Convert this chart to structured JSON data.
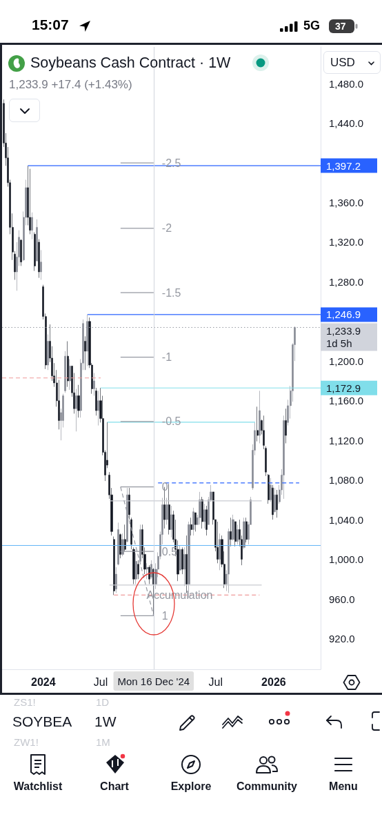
{
  "chart_data": {
    "type": "candlestick",
    "title": "Soybeans Cash Contract · 1W",
    "subtitle": "1,233.9 +17.4 (+1.43%)",
    "x": [
      "2023-08-28",
      "2023-09-04",
      "2023-09-11",
      "2023-09-18",
      "2023-09-25",
      "2023-10-02",
      "2023-10-09",
      "2023-10-16",
      "2023-10-23",
      "2023-10-30",
      "2023-11-06",
      "2023-11-13",
      "2023-11-20",
      "2023-11-27",
      "2023-12-04",
      "2023-12-11",
      "2023-12-18",
      "2023-12-25",
      "2024-01-01",
      "2024-01-08",
      "2024-01-15",
      "2024-01-22",
      "2024-01-29",
      "2024-02-05",
      "2024-02-12",
      "2024-02-19",
      "2024-02-26",
      "2024-03-04",
      "2024-03-11",
      "2024-03-18",
      "2024-03-25",
      "2024-04-01",
      "2024-04-08",
      "2024-04-15",
      "2024-04-22",
      "2024-04-29",
      "2024-05-06",
      "2024-05-13",
      "2024-05-20",
      "2024-05-27",
      "2024-06-03",
      "2024-06-10",
      "2024-06-17",
      "2024-06-24",
      "2024-07-01",
      "2024-07-08",
      "2024-07-15",
      "2024-07-22",
      "2024-07-29",
      "2024-08-05",
      "2024-08-12",
      "2024-08-19",
      "2024-08-26",
      "2024-09-02",
      "2024-09-09",
      "2024-09-16",
      "2024-09-23",
      "2024-09-30",
      "2024-10-07",
      "2024-10-14",
      "2024-10-21",
      "2024-10-28",
      "2024-11-04",
      "2024-11-11",
      "2024-11-18",
      "2024-11-25",
      "2024-12-02",
      "2024-12-09",
      "2024-12-16",
      "2024-12-23",
      "2024-12-30",
      "2025-01-06",
      "2025-01-13",
      "2025-01-20",
      "2025-01-27",
      "2025-02-03",
      "2025-02-10",
      "2025-02-17",
      "2025-02-24",
      "2025-03-03",
      "2025-03-10",
      "2025-03-17",
      "2025-03-24",
      "2025-03-31",
      "2025-04-07",
      "2025-04-14",
      "2025-04-21",
      "2025-04-28",
      "2025-05-05",
      "2025-05-12",
      "2025-05-19",
      "2025-05-26",
      "2025-06-02",
      "2025-06-09",
      "2025-06-16",
      "2025-06-23",
      "2025-06-30",
      "2025-07-07",
      "2025-07-14",
      "2025-07-21",
      "2025-07-28",
      "2025-08-04",
      "2025-08-11",
      "2025-08-18",
      "2025-08-25",
      "2025-09-01",
      "2025-09-08",
      "2025-09-15",
      "2025-09-22",
      "2025-09-29",
      "2025-10-06",
      "2025-10-13",
      "2025-10-20",
      "2025-10-27",
      "2025-11-03",
      "2025-11-10",
      "2025-11-17",
      "2025-11-24",
      "2025-12-01",
      "2025-12-08",
      "2025-12-15",
      "2025-12-22",
      "2025-12-29",
      "2026-01-05",
      "2026-01-12",
      "2026-01-19",
      "2026-01-26",
      "2026-02-02",
      "2026-02-09",
      "2026-02-16",
      "2026-02-23",
      "2026-03-02",
      "2026-03-09"
    ],
    "ohlc": [
      [
        1460,
        1464,
        1416,
        1420
      ],
      [
        1420,
        1430,
        1397,
        1405
      ],
      [
        1405,
        1416,
        1376,
        1380
      ],
      [
        1380,
        1383,
        1328,
        1335
      ],
      [
        1335,
        1349,
        1302,
        1310
      ],
      [
        1308,
        1311,
        1282,
        1290
      ],
      [
        1290,
        1320,
        1271,
        1305
      ],
      [
        1305,
        1332,
        1296,
        1325
      ],
      [
        1322,
        1323,
        1296,
        1300
      ],
      [
        1302,
        1351,
        1301,
        1345
      ],
      [
        1345,
        1383,
        1337,
        1375
      ],
      [
        1375,
        1397.2,
        1337,
        1345
      ],
      [
        1345,
        1394,
        1328,
        1332
      ],
      [
        1332,
        1350,
        1323,
        1345
      ],
      [
        1328,
        1330,
        1291,
        1296
      ],
      [
        1301,
        1343,
        1301,
        1335
      ],
      [
        1320,
        1323,
        1284,
        1290
      ],
      [
        1290,
        1312,
        1282,
        1300
      ],
      [
        1275,
        1277,
        1242,
        1245
      ],
      [
        1245,
        1248,
        1192,
        1196
      ],
      [
        1196,
        1227,
        1191,
        1220
      ],
      [
        1220,
        1237,
        1199,
        1203
      ],
      [
        1203,
        1215,
        1180,
        1185
      ],
      [
        1185,
        1198,
        1174,
        1178
      ],
      [
        1178,
        1191,
        1154,
        1160
      ],
      [
        1160,
        1181,
        1131,
        1140
      ],
      [
        1140,
        1152,
        1120,
        1148
      ],
      [
        1140,
        1167,
        1133,
        1165
      ],
      [
        1170,
        1210,
        1168,
        1205
      ],
      [
        1205,
        1220,
        1174,
        1180
      ],
      [
        1180,
        1202,
        1171,
        1195
      ],
      [
        1195,
        1195,
        1164,
        1168
      ],
      [
        1168,
        1188,
        1147,
        1152
      ],
      [
        1152,
        1172,
        1129,
        1165
      ],
      [
        1165,
        1176,
        1143,
        1150
      ],
      [
        1150,
        1202,
        1143,
        1198
      ],
      [
        1198,
        1242,
        1191,
        1238
      ],
      [
        1220,
        1225,
        1191,
        1210
      ],
      [
        1210,
        1246.9,
        1195,
        1240
      ],
      [
        1240,
        1244,
        1193,
        1196
      ],
      [
        1196,
        1198,
        1167,
        1172
      ],
      [
        1172,
        1188,
        1165,
        1180
      ],
      [
        1170,
        1173,
        1145,
        1150
      ],
      [
        1150,
        1170,
        1135,
        1160
      ],
      [
        1160,
        1172.9,
        1138,
        1142
      ],
      [
        1142,
        1165,
        1105,
        1108
      ],
      [
        1108,
        1110,
        1079,
        1085
      ],
      [
        1100,
        1138.4,
        1092,
        1095
      ],
      [
        1085,
        1088,
        1061,
        1065
      ],
      [
        1065,
        1072,
        1024,
        1028
      ],
      [
        1020,
        1023,
        964,
        968
      ],
      [
        970,
        992,
        966,
        985
      ],
      [
        995,
        1037,
        994,
        1030
      ],
      [
        1025,
        1026,
        1001,
        1005
      ],
      [
        1005,
        1026,
        1003,
        1020
      ],
      [
        1020,
        1035,
        1008,
        1010
      ],
      [
        1018,
        1072,
        1017,
        1065
      ],
      [
        1065,
        1072,
        1040,
        1045
      ],
      [
        1040,
        1042,
        1010,
        1015
      ],
      [
        1010,
        1012,
        975,
        980
      ],
      [
        980,
        1006,
        975,
        998
      ],
      [
        995,
        999,
        980,
        985
      ],
      [
        998,
        1035,
        996,
        1030
      ],
      [
        1030,
        1035,
        1001,
        1005
      ],
      [
        1005,
        1012,
        985,
        990
      ],
      [
        990,
        996,
        980,
        992
      ],
      [
        992,
        994,
        975,
        980
      ],
      [
        982,
        999,
        980,
        995
      ],
      [
        990,
        991,
        943,
        975
      ],
      [
        975,
        996,
        970,
        990
      ],
      [
        990,
        1007,
        982,
        1003
      ],
      [
        1003,
        1028,
        1000,
        1025
      ],
      [
        1025,
        1062,
        1015,
        1055
      ],
      [
        1055,
        1073,
        1031,
        1040
      ],
      [
        1040,
        1062,
        1035,
        1055
      ],
      [
        1055,
        1076,
        1025,
        1030
      ],
      [
        1030,
        1054,
        1022,
        1045
      ],
      [
        1045,
        1049,
        1017,
        1020
      ],
      [
        1020,
        1040,
        1003,
        1010
      ],
      [
        1010,
        1019,
        978,
        985
      ],
      [
        989,
        1014,
        989,
        1010
      ],
      [
        1010,
        1012,
        985,
        990
      ],
      [
        990,
        1012,
        973,
        1005
      ],
      [
        1005,
        1024,
        966,
        975
      ],
      [
        975,
        1038,
        961,
        1035
      ],
      [
        1035,
        1042,
        1024,
        1030
      ],
      [
        1030,
        1052,
        1024,
        1048
      ],
      [
        1047,
        1047,
        1028,
        1035
      ],
      [
        1035,
        1045,
        1035,
        1042
      ],
      [
        1042,
        1068,
        1035,
        1060
      ],
      [
        1060,
        1063,
        1031,
        1038
      ],
      [
        1038,
        1056,
        1031,
        1050
      ],
      [
        1050,
        1054,
        1024,
        1030
      ],
      [
        1035,
        1063,
        1035,
        1060
      ],
      [
        1060,
        1075,
        1058,
        1068
      ],
      [
        1068,
        1068,
        1035,
        1040
      ],
      [
        1040,
        1040,
        1008,
        1012
      ],
      [
        1012,
        1038,
        996,
        1000
      ],
      [
        1000,
        1026,
        989,
        1020
      ],
      [
        1020,
        1024,
        992,
        995
      ],
      [
        995,
        1008,
        971,
        975
      ],
      [
        975,
        989,
        968,
        985
      ],
      [
        985,
        1031,
        966,
        1028
      ],
      [
        1028,
        1042,
        1013,
        1020
      ],
      [
        1020,
        1045,
        1019,
        1040
      ],
      [
        1038,
        1038,
        1013,
        1018
      ],
      [
        1018,
        1035,
        1015,
        1030
      ],
      [
        1030,
        1040,
        1013,
        1020
      ],
      [
        1020,
        1024,
        994,
        1000
      ],
      [
        1012,
        1042,
        1010,
        1038
      ],
      [
        1038,
        1042,
        1017,
        1020
      ],
      [
        1020,
        1038,
        1015,
        1035
      ],
      [
        1035,
        1063,
        1035,
        1060
      ],
      [
        1072,
        1116,
        1070,
        1110
      ],
      [
        1110,
        1138,
        1105,
        1130
      ],
      [
        1130,
        1154,
        1119,
        1125
      ],
      [
        1125,
        1170,
        1117,
        1150
      ],
      [
        1140,
        1141,
        1126,
        1130
      ],
      [
        1130,
        1145,
        1111,
        1115
      ],
      [
        1112,
        1114,
        1084,
        1088
      ],
      [
        1085,
        1086,
        1056,
        1060
      ],
      [
        1060,
        1082,
        1058,
        1075
      ],
      [
        1072,
        1075,
        1040,
        1045
      ],
      [
        1048,
        1072,
        1047,
        1065
      ],
      [
        1065,
        1070,
        1042,
        1050
      ],
      [
        1058,
        1075,
        1056,
        1070
      ],
      [
        1070,
        1091,
        1065,
        1085
      ],
      [
        1085,
        1145,
        1061,
        1140
      ],
      [
        1140,
        1152,
        1117,
        1125
      ],
      [
        1138,
        1161,
        1135,
        1155
      ],
      [
        1155,
        1175,
        1142,
        1170
      ],
      [
        1170,
        1218,
        1159,
        1216.5
      ],
      [
        1216.5,
        1235,
        1200,
        1233.9
      ]
    ],
    "colors": [
      "#131722",
      "#131722",
      "#131722",
      "#131722",
      "#131722",
      "#131722",
      "#868993",
      "#868993",
      "#131722",
      "#868993",
      "#868993",
      "#131722",
      "#131722",
      "#868993",
      "#131722",
      "#868993",
      "#131722",
      "#868993",
      "#131722",
      "#131722",
      "#868993",
      "#131722",
      "#131722",
      "#131722",
      "#131722",
      "#131722",
      "#868993",
      "#868993",
      "#868993",
      "#131722",
      "#868993",
      "#131722",
      "#131722",
      "#868993",
      "#131722",
      "#868993",
      "#868993",
      "#131722",
      "#868993",
      "#131722",
      "#131722",
      "#868993",
      "#131722",
      "#868993",
      "#131722",
      "#131722",
      "#131722",
      "#131722",
      "#131722",
      "#131722",
      "#131722",
      "#868993",
      "#868993",
      "#131722",
      "#868993",
      "#131722",
      "#868993",
      "#131722",
      "#131722",
      "#131722",
      "#868993",
      "#131722",
      "#868993",
      "#131722",
      "#131722",
      "#868993",
      "#131722",
      "#868993",
      "#131722",
      "#868993",
      "#868993",
      "#868993",
      "#868993",
      "#131722",
      "#868993",
      "#131722",
      "#868993",
      "#131722",
      "#131722",
      "#131722",
      "#868993",
      "#131722",
      "#868993",
      "#131722",
      "#868993",
      "#131722",
      "#868993",
      "#131722",
      "#868993",
      "#868993",
      "#131722",
      "#868993",
      "#131722",
      "#868993",
      "#868993",
      "#131722",
      "#131722",
      "#131722",
      "#868993",
      "#131722",
      "#131722",
      "#868993",
      "#868993",
      "#131722",
      "#868993",
      "#131722",
      "#868993",
      "#131722",
      "#131722",
      "#868993",
      "#131722",
      "#868993",
      "#868993",
      "#868993",
      "#868993",
      "#131722",
      "#868993",
      "#131722",
      "#131722",
      "#131722",
      "#131722",
      "#868993",
      "#131722",
      "#868993",
      "#131722",
      "#868993",
      "#868993",
      "#868993",
      "#131722",
      "#868993",
      "#868993",
      "#868993",
      "#868993"
    ],
    "series": [
      {
        "type": "line",
        "x": [
          "2023-11-13",
          "2026-05-30"
        ],
        "values": [
          1397.2,
          1397.2
        ],
        "color": "#2962ff",
        "value_labels": [
          null,
          "1,397.2"
        ]
      },
      {
        "type": "line",
        "x": [
          "2024-05-20",
          "2026-05-30"
        ],
        "values": [
          1246.9,
          1246.9
        ],
        "color": "#2962ff",
        "value_labels": [
          null,
          "1,246.9"
        ]
      },
      {
        "type": "line",
        "x": [
          "2024-07-01",
          "2026-05-30"
        ],
        "values": [
          1172.9,
          1172.9
        ],
        "color": "#80deea",
        "value_labels": [
          null,
          "1,172.9"
        ]
      },
      {
        "type": "line",
        "x": [
          "2024-07-22",
          "2025-11-03"
        ],
        "values": [
          1138.4,
          1138.4
        ],
        "color": "#80deea"
      },
      {
        "type": "line",
        "x": [
          "2024-12-30",
          "2026-03-23"
        ],
        "values": [
          1077,
          1077
        ],
        "color": "#2962ff",
        "line_style": "dashed"
      },
      {
        "type": "line",
        "x": [
          "2023-08-23",
          "2024-07-01"
        ],
        "values": [
          1183,
          1183
        ],
        "color": "#ef9a9a",
        "line_style": "dashed"
      },
      {
        "type": "line",
        "x": [
          "2024-08-12",
          "2025-11-17"
        ],
        "values": [
          964,
          964
        ],
        "color": "#ef9a9a",
        "line_style": "dashed"
      },
      {
        "type": "line",
        "x": [
          "2024-07-29",
          "2025-11-24"
        ],
        "values": [
          1059,
          1059
        ],
        "color": "#c9cbd1"
      },
      {
        "type": "line",
        "x": [
          "2024-07-29",
          "2025-11-24"
        ],
        "values": [
          974,
          974
        ],
        "color": "#c9cbd1"
      },
      {
        "type": "line",
        "x": [
          "2024-09-02",
          "2024-12-16"
        ],
        "values": [
          1073,
          943
        ],
        "color": "#9598a1",
        "line_style": "dashed"
      },
      {
        "type": "line",
        "x": [
          "2024-09-02",
          "2024-12-16"
        ],
        "values": [
          943,
          943
        ],
        "color": "#9598a1"
      },
      {
        "type": "line",
        "x": [
          "2024-09-02",
          "2024-12-16"
        ],
        "values": [
          1008,
          1008
        ],
        "color": "#9598a1"
      },
      {
        "type": "line",
        "x": [
          "2024-09-02",
          "2024-12-16"
        ],
        "values": [
          1073,
          1073
        ],
        "color": "#9598a1"
      },
      {
        "type": "line",
        "x": [
          "2024-09-02",
          "2024-12-16"
        ],
        "values": [
          1139,
          1139
        ],
        "color": "#9598a1"
      },
      {
        "type": "line",
        "x": [
          "2024-09-02",
          "2024-12-16"
        ],
        "values": [
          1204,
          1204
        ],
        "color": "#9598a1"
      },
      {
        "type": "line",
        "x": [
          "2024-09-02",
          "2024-12-16"
        ],
        "values": [
          1269,
          1269
        ],
        "color": "#9598a1"
      },
      {
        "type": "line",
        "x": [
          "2024-09-02",
          "2024-12-16"
        ],
        "values": [
          1334,
          1334
        ],
        "color": "#9598a1"
      },
      {
        "type": "line",
        "x": [
          "2024-09-02",
          "2024-12-16"
        ],
        "values": [
          1400,
          1400
        ],
        "color": "#9598a1"
      }
    ],
    "xlim": [
      "2023-08-23",
      "2026-05-30"
    ],
    "xticks": [
      {
        "value": "2024-01-01",
        "label": "2024"
      },
      {
        "value": "2024-07-01",
        "label": "Jul"
      },
      {
        "value": "2025-07-01",
        "label": "Jul"
      },
      {
        "value": "2026-01-01",
        "label": "2026"
      }
    ],
    "ylim": [
      889,
      1517
    ],
    "yticks": [
      {
        "value": 920,
        "label": "920.0"
      },
      {
        "value": 960,
        "label": "960.0"
      },
      {
        "value": 1000,
        "label": "1,000.0"
      },
      {
        "value": 1040,
        "label": "1,040.0"
      },
      {
        "value": 1080,
        "label": "1,080.0"
      },
      {
        "value": 1120,
        "label": "1,120.0"
      },
      {
        "value": 1160,
        "label": "1,160.0"
      },
      {
        "value": 1200,
        "label": "1,200.0"
      },
      {
        "value": 1280,
        "label": "1,280.0"
      },
      {
        "value": 1320,
        "label": "1,320.0"
      },
      {
        "value": 1360,
        "label": "1,360.0"
      },
      {
        "value": 1440,
        "label": "1,440.0"
      },
      {
        "value": 1480,
        "label": "1,480.0"
      }
    ],
    "ref_lines": [
      {
        "axis": "y",
        "value": 1014,
        "color": "#64b5f6"
      },
      {
        "axis": "y",
        "value": 1233.9,
        "label": "1,233.9\n1d 5h",
        "color": "#9598a1",
        "line_style": "dotted"
      },
      {
        "axis": "x",
        "value": "2024-12-16",
        "label": "Mon 16 Dec '24",
        "color": "#d1d4dc"
      }
    ],
    "annotations": [
      {
        "text": "Accumulation",
        "x": "2024-10-28",
        "y": 964
      },
      {
        "text": "1",
        "x": "2024-12-16",
        "y": 943
      },
      {
        "text": "0.5",
        "x": "2024-12-16",
        "y": 1008
      },
      {
        "text": "0",
        "x": "2024-12-16",
        "y": 1073
      },
      {
        "text": "-0.5",
        "x": "2024-12-16",
        "y": 1139
      },
      {
        "text": "-1",
        "x": "2024-12-16",
        "y": 1204
      },
      {
        "text": "-1.5",
        "x": "2024-12-16",
        "y": 1269
      },
      {
        "text": "-2",
        "x": "2024-12-16",
        "y": 1334
      },
      {
        "text": "-2.5",
        "x": "2024-12-16",
        "y": 1400
      },
      "USD",
      "15:07",
      "5G",
      "37",
      "SOYBEA",
      "1W",
      "ZS1!",
      "1D",
      "ZW1!",
      "1M",
      "Watchlist",
      "Chart",
      "Explore",
      "Community",
      "Menu"
    ],
    "grid": false
  }
}
